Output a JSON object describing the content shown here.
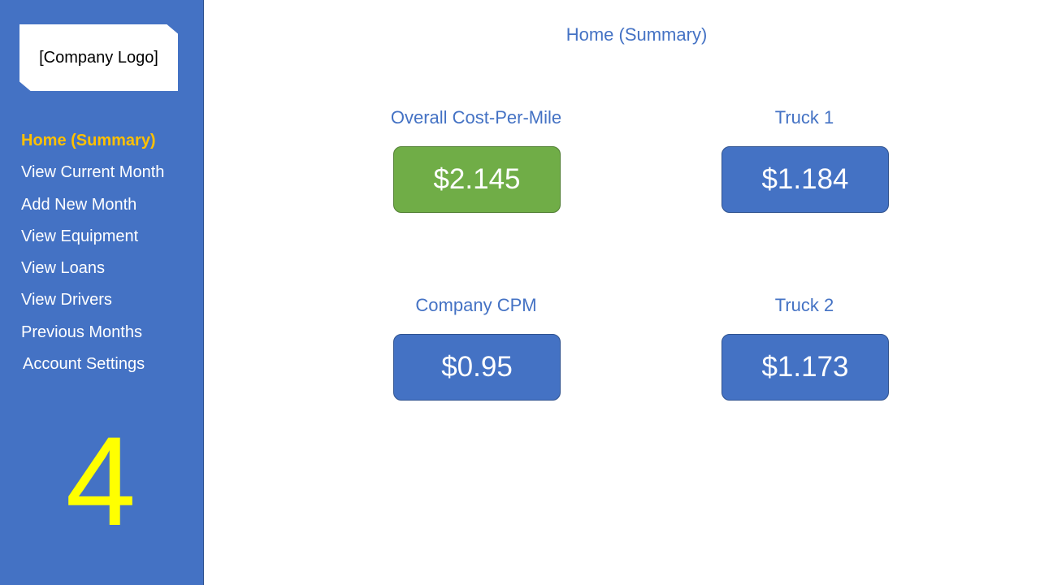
{
  "sidebar": {
    "logo": "[Company Logo]",
    "items": [
      {
        "label": "Home (Summary)",
        "active": true
      },
      {
        "label": "View Current Month"
      },
      {
        "label": "Add New Month"
      },
      {
        "label": "View Equipment"
      },
      {
        "label": "View Loans"
      },
      {
        "label": "View Drivers"
      },
      {
        "label": "Previous Months"
      },
      {
        "label": "Account Settings"
      }
    ],
    "step_number": "4"
  },
  "main": {
    "title": "Home (Summary)",
    "metrics": [
      {
        "label": "Overall Cost-Per-Mile",
        "value": "$2.145",
        "color": "#70ad47"
      },
      {
        "label": "Truck 1",
        "value": "$1.184",
        "color": "#4472c4"
      },
      {
        "label": "Company CPM",
        "value": "$0.95",
        "color": "#4472c4"
      },
      {
        "label": "Truck 2",
        "value": "$1.173",
        "color": "#4472c4"
      }
    ]
  },
  "colors": {
    "sidebar_bg": "#4472c4",
    "active_nav": "#ffc000",
    "step_number": "#ffff00",
    "accent_green": "#70ad47"
  }
}
